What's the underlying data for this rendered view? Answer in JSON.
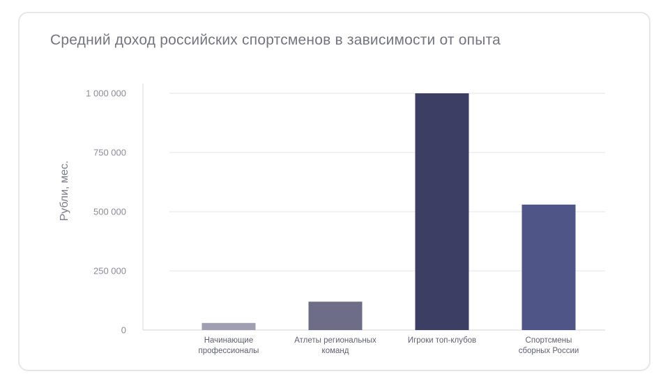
{
  "chart_data": {
    "type": "bar",
    "title": "Средний доход российских спортсменов в зависимости от опыта",
    "ylabel": "Рубли, мес.",
    "xlabel": "",
    "ylim": [
      0,
      1000000
    ],
    "grid": true,
    "yticks": [
      {
        "value": 0,
        "label": "0"
      },
      {
        "value": 250000,
        "label": "250 000"
      },
      {
        "value": 500000,
        "label": "500 000"
      },
      {
        "value": 750000,
        "label": "750 000"
      },
      {
        "value": 1000000,
        "label": "1 000 000"
      }
    ],
    "categories": [
      [
        "Начинающие",
        "профессионалы"
      ],
      [
        "Атлеты региональных",
        "команд"
      ],
      [
        "Игроки топ-клубов"
      ],
      [
        "Спортсмены",
        "сборных России"
      ]
    ],
    "values": [
      30000,
      120000,
      1000000,
      530000
    ],
    "colors": [
      "#a09fb2",
      "#6e6d88",
      "#3d3e64",
      "#4f5687"
    ]
  }
}
